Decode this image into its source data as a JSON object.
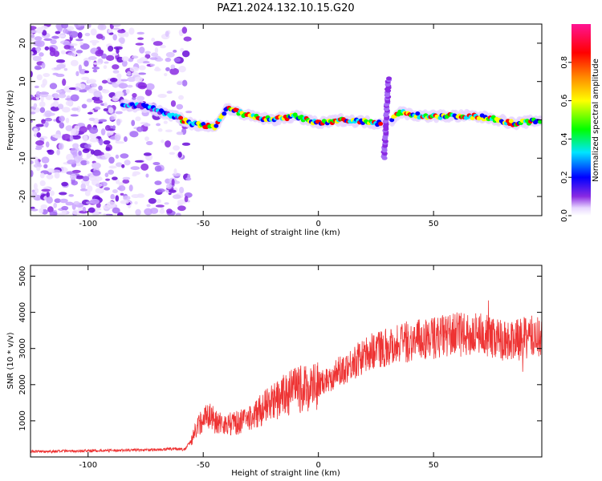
{
  "title": "PAZ1.2024.132.10.15.G20",
  "chart_data": [
    {
      "type": "heatmap",
      "xlabel": "Height of straight line (km)",
      "ylabel": "Frequency (Hz)",
      "xlim": [
        -125,
        97
      ],
      "ylim": [
        -25,
        25
      ],
      "xticks": [
        -100,
        -50,
        0,
        50
      ],
      "yticks": [
        -20,
        -10,
        0,
        10,
        20
      ],
      "colorbar": {
        "label": "Normalized spectral amplitude",
        "ticks": [
          0.0,
          0.2,
          0.4,
          0.6,
          0.8
        ],
        "range": [
          0,
          1
        ],
        "colormap": [
          "#ffffff",
          "#8a2be2",
          "#0000ff",
          "#00e5ff",
          "#00ff00",
          "#ffff00",
          "#ff8c00",
          "#ff0000",
          "#ff1493"
        ]
      },
      "ridge": {
        "description_points_x": [
          -85,
          -75,
          -65,
          -55,
          -45,
          -40,
          -30,
          -20,
          -10,
          0,
          10,
          20,
          27,
          29,
          32,
          35,
          45,
          55,
          65,
          75,
          85,
          97
        ],
        "frequency_hz": [
          4,
          3.5,
          1.5,
          -1,
          -2,
          3,
          1,
          0,
          1,
          -1,
          0,
          -0.5,
          -1,
          0,
          0,
          2,
          1,
          1,
          1,
          0.5,
          -1,
          0
        ]
      },
      "noise_region_x": [
        -125,
        -60
      ]
    },
    {
      "type": "line",
      "xlabel": "Height of straight line (km)",
      "ylabel": "SNR (10 * v/v)",
      "xlim": [
        -125,
        97
      ],
      "ylim": [
        0,
        5300
      ],
      "xticks": [
        -100,
        -50,
        0,
        50
      ],
      "yticks": [
        1000,
        2000,
        3000,
        4000,
        5000
      ],
      "color": "#ee3333",
      "series": [
        {
          "x": [
            -125,
            -110,
            -100,
            -90,
            -80,
            -70,
            -62,
            -58,
            -55,
            -52,
            -48,
            -45,
            -40,
            -35,
            -30,
            -25,
            -20,
            -15,
            -10,
            -5,
            0,
            5,
            10,
            15,
            20,
            25,
            30,
            35,
            40,
            45,
            50,
            55,
            60,
            65,
            70,
            75,
            80,
            85,
            90,
            97
          ],
          "y": [
            150,
            160,
            170,
            180,
            190,
            200,
            230,
            200,
            500,
            900,
            1200,
            1000,
            900,
            950,
            1050,
            1300,
            1500,
            1700,
            1850,
            1900,
            2000,
            2200,
            2400,
            2600,
            2800,
            3000,
            3050,
            3150,
            3200,
            3250,
            3300,
            3350,
            3400,
            3350,
            3400,
            3300,
            3250,
            3200,
            3300,
            3350
          ]
        }
      ]
    }
  ]
}
